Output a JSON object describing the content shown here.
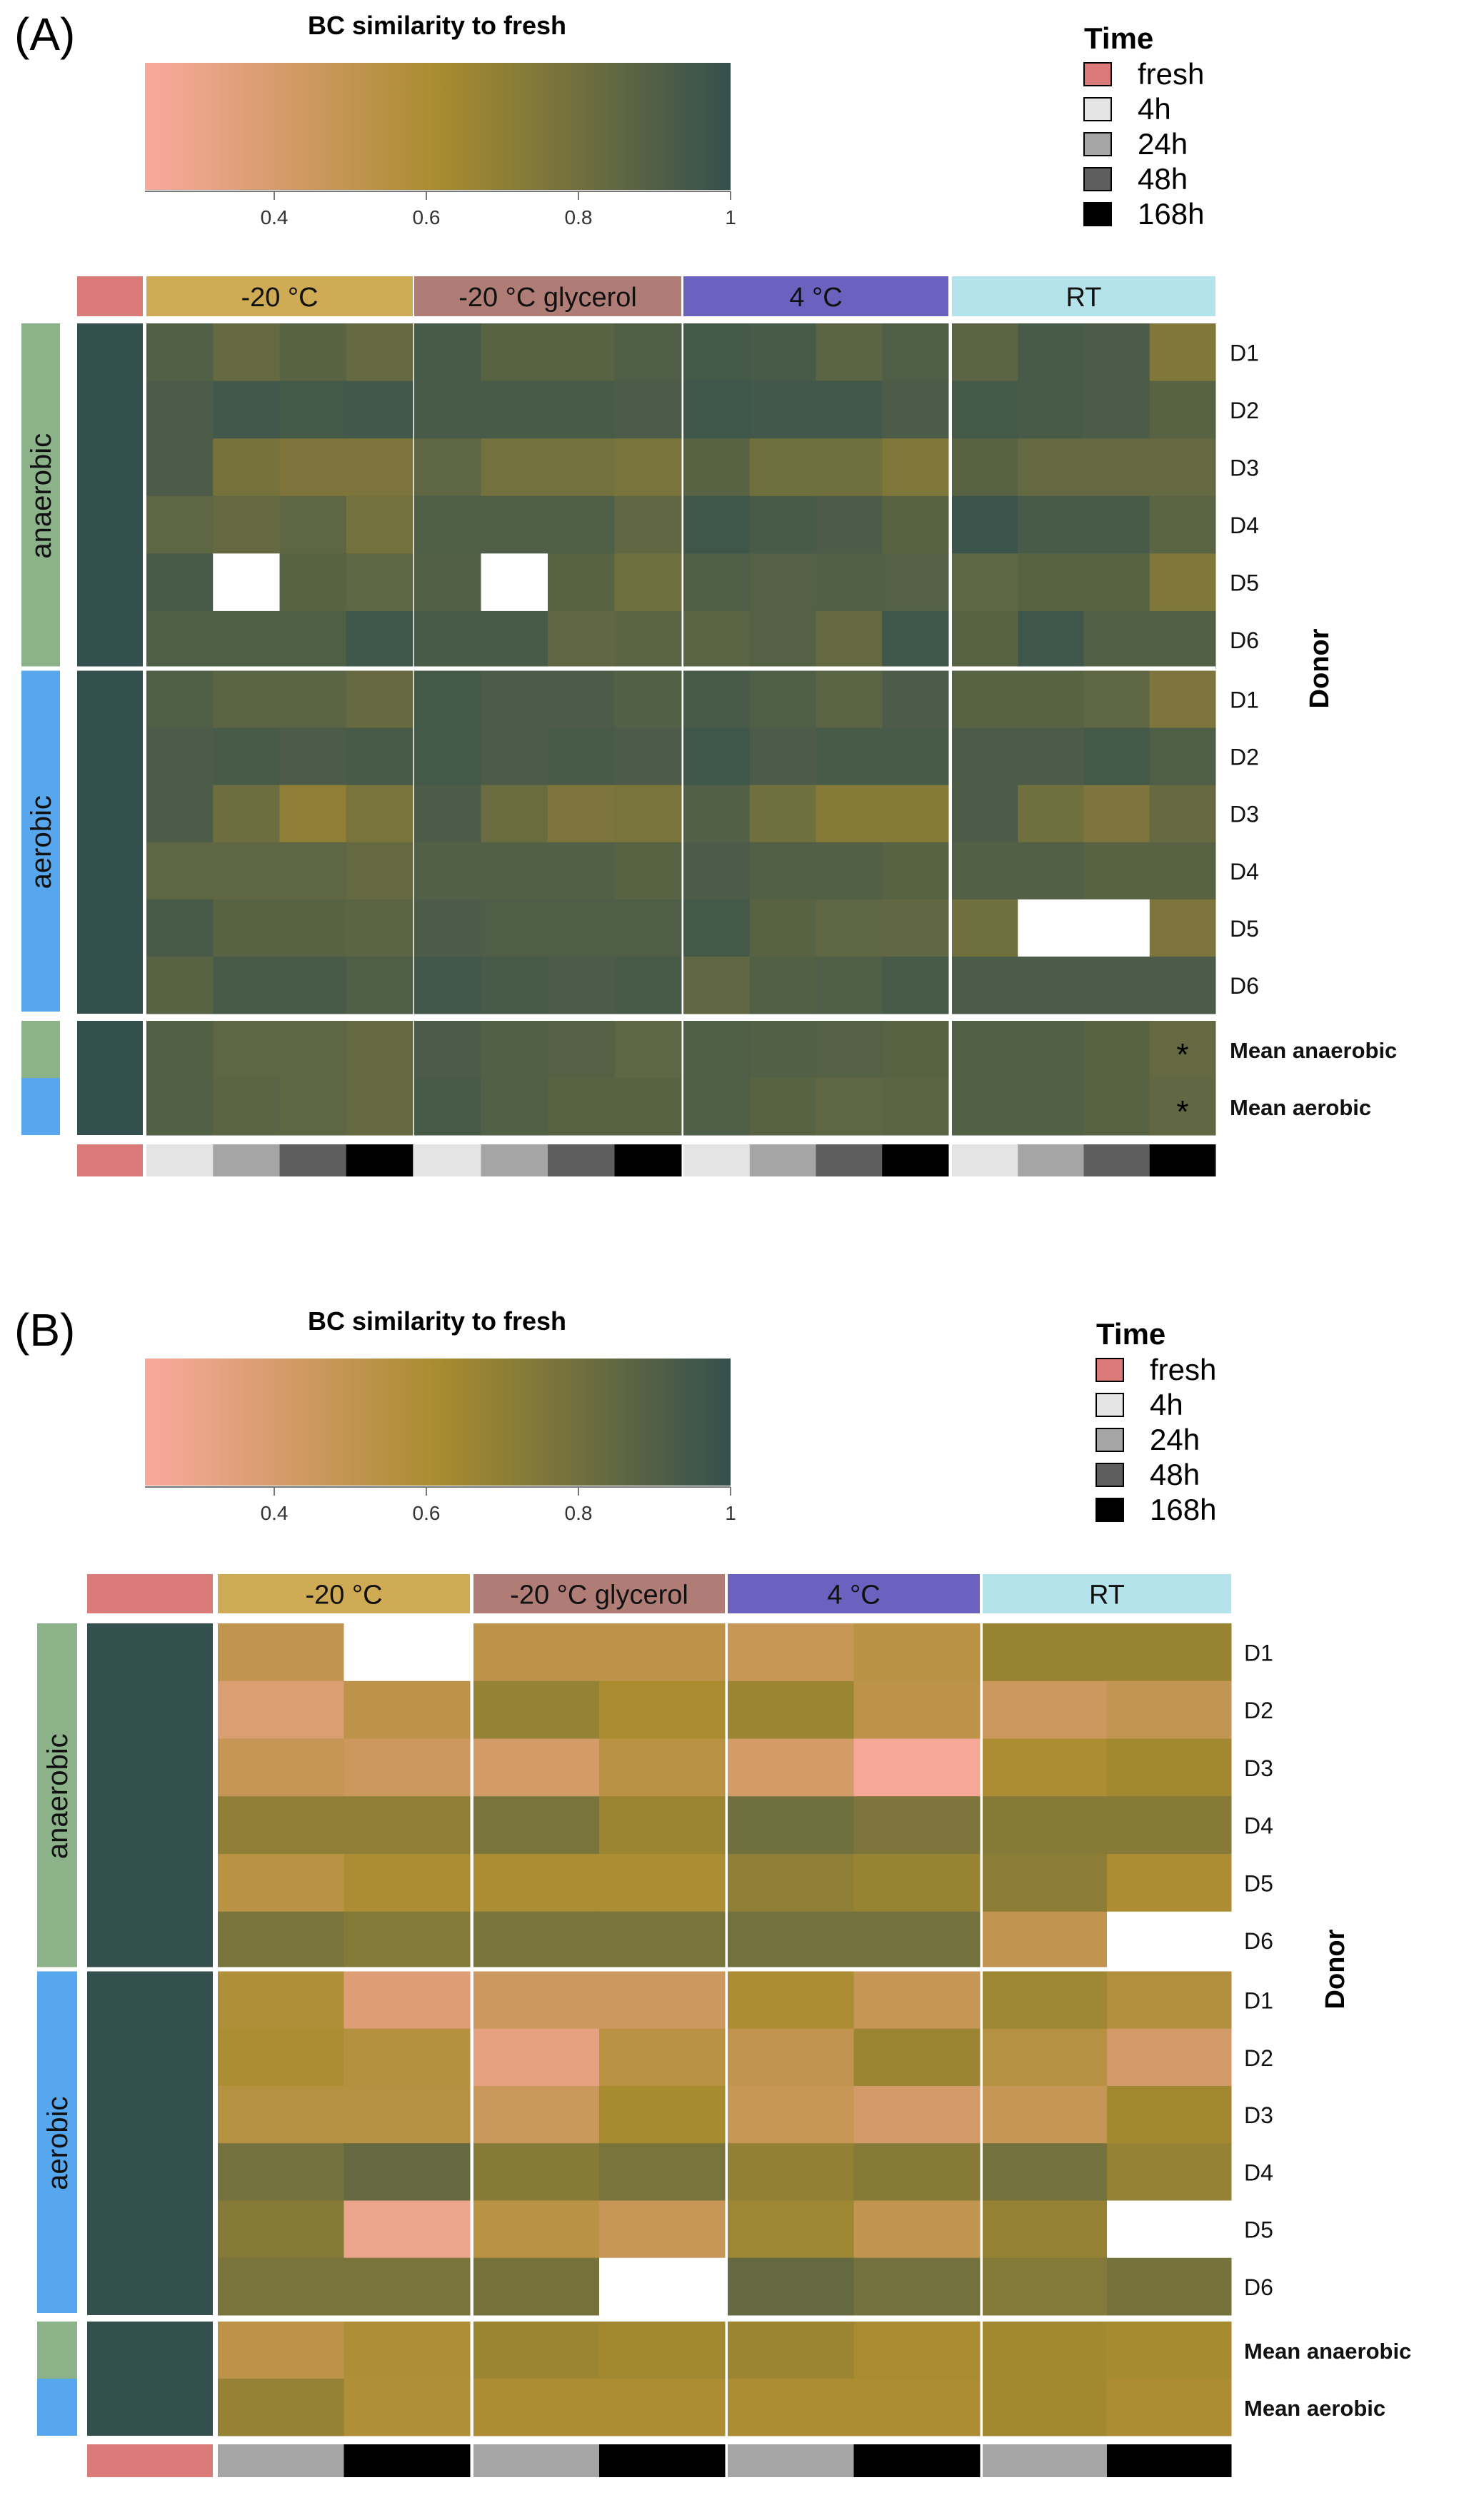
{
  "colors": {
    "scale_low": "#FAA99D",
    "scale_mid": "#A98C2F",
    "scale_high": "#33504E",
    "fresh": "#DB7B79",
    "t4h": "#E4E4E4",
    "t24h": "#A5A5A5",
    "t48h": "#5E5E5E",
    "t168h": "#000000",
    "cond_m20": "#CFAB55",
    "cond_glyc": "#B07C76",
    "cond_4c": "#6A62BE",
    "cond_rt": "#B4E3EC",
    "anaerobic": "#8BB289",
    "aerobic": "#57A7EE"
  },
  "chart_data": [
    {
      "panel_label": "(A)",
      "type": "heatmap",
      "title": "BC similarity to fresh",
      "colorbar": {
        "min": 0.23,
        "max": 1,
        "ticks": [
          "0.4",
          "0.6",
          "0.8",
          "1"
        ],
        "tick_values": [
          0.4,
          0.6,
          0.8,
          1.0
        ]
      },
      "legend": {
        "title": "Time",
        "entries": [
          "fresh",
          "4h",
          "24h",
          "48h",
          "168h"
        ]
      },
      "conditions": [
        "-20 °C",
        "-20 °C glycerol",
        "4 °C",
        "RT"
      ],
      "timepoints": [
        "4h",
        "24h",
        "48h",
        "168h"
      ],
      "groups": [
        "anaerobic",
        "aerobic"
      ],
      "rows": [
        "D1",
        "D2",
        "D3",
        "D4",
        "D5",
        "D6",
        "D1",
        "D2",
        "D3",
        "D4",
        "D5",
        "D6"
      ],
      "mean_rows": [
        "Mean anaerobic",
        "Mean aerobic"
      ],
      "row_axis_label": "Donor",
      "significance": [
        {
          "row": "Mean anaerobic",
          "condition": "RT",
          "time": "168h",
          "mark": "*"
        },
        {
          "row": "Mean aerobic",
          "condition": "RT",
          "time": "168h",
          "mark": "*"
        }
      ],
      "fresh_values": [
        1,
        1,
        1,
        1,
        1,
        1,
        1,
        1,
        1,
        1,
        1,
        1,
        1,
        1
      ],
      "values": [
        [
          0.9,
          0.84,
          0.88,
          0.84,
          0.93,
          0.88,
          0.88,
          0.91,
          0.94,
          0.93,
          0.87,
          0.91,
          0.87,
          0.93,
          0.92,
          0.75
        ],
        [
          0.92,
          0.95,
          0.94,
          0.95,
          0.93,
          0.93,
          0.93,
          0.92,
          0.96,
          0.95,
          0.95,
          0.92,
          0.94,
          0.93,
          0.92,
          0.88
        ],
        [
          0.92,
          0.78,
          0.76,
          0.76,
          0.86,
          0.79,
          0.79,
          0.77,
          0.88,
          0.8,
          0.8,
          0.75,
          0.88,
          0.84,
          0.84,
          0.84
        ],
        [
          0.86,
          0.84,
          0.86,
          0.79,
          0.91,
          0.91,
          0.91,
          0.85,
          0.96,
          0.93,
          0.92,
          0.88,
          0.97,
          0.93,
          0.93,
          0.87
        ],
        [
          0.93,
          null,
          0.88,
          0.86,
          0.9,
          null,
          0.88,
          0.8,
          0.91,
          0.89,
          0.9,
          0.89,
          0.86,
          0.88,
          0.88,
          0.75
        ],
        [
          0.91,
          0.91,
          0.91,
          0.96,
          0.93,
          0.93,
          0.85,
          0.87,
          0.87,
          0.89,
          0.84,
          0.96,
          0.88,
          0.96,
          0.9,
          0.9
        ],
        [
          0.91,
          0.87,
          0.87,
          0.83,
          0.94,
          0.92,
          0.92,
          0.9,
          0.93,
          0.91,
          0.87,
          0.92,
          0.88,
          0.88,
          0.86,
          0.76
        ],
        [
          0.92,
          0.93,
          0.92,
          0.93,
          0.94,
          0.92,
          0.93,
          0.92,
          0.96,
          0.92,
          0.93,
          0.93,
          0.92,
          0.92,
          0.94,
          0.91
        ],
        [
          0.92,
          0.81,
          0.7,
          0.77,
          0.92,
          0.82,
          0.76,
          0.77,
          0.9,
          0.8,
          0.73,
          0.73,
          0.92,
          0.8,
          0.76,
          0.83
        ],
        [
          0.86,
          0.86,
          0.86,
          0.84,
          0.9,
          0.9,
          0.9,
          0.88,
          0.92,
          0.9,
          0.9,
          0.88,
          0.9,
          0.9,
          0.88,
          0.88
        ],
        [
          0.93,
          0.88,
          0.88,
          0.87,
          0.92,
          0.91,
          0.91,
          0.91,
          0.94,
          0.88,
          0.86,
          0.85,
          0.8,
          null,
          null,
          0.76
        ],
        [
          0.88,
          0.93,
          0.93,
          0.91,
          0.95,
          0.93,
          0.92,
          0.93,
          0.85,
          0.9,
          0.91,
          0.93,
          0.92,
          0.92,
          0.92,
          0.92
        ]
      ],
      "mean_values": [
        [
          0.9,
          0.86,
          0.86,
          0.84,
          0.92,
          0.9,
          0.89,
          0.86,
          0.91,
          0.9,
          0.89,
          0.88,
          0.9,
          0.9,
          0.88,
          0.84
        ],
        [
          0.9,
          0.87,
          0.86,
          0.84,
          0.93,
          0.9,
          0.88,
          0.88,
          0.91,
          0.88,
          0.86,
          0.87,
          0.9,
          0.9,
          0.88,
          0.85
        ]
      ]
    },
    {
      "panel_label": "(B)",
      "type": "heatmap",
      "title": "BC similarity to fresh",
      "colorbar": {
        "min": 0.23,
        "max": 1,
        "ticks": [
          "0.4",
          "0.6",
          "0.8",
          "1"
        ],
        "tick_values": [
          0.4,
          0.6,
          0.8,
          1.0
        ]
      },
      "legend": {
        "title": "Time",
        "entries": [
          "fresh",
          "4h",
          "24h",
          "48h",
          "168h"
        ]
      },
      "conditions": [
        "-20 °C",
        "-20 °C glycerol",
        "4 °C",
        "RT"
      ],
      "timepoints": [
        "24h",
        "168h"
      ],
      "groups": [
        "anaerobic",
        "aerobic"
      ],
      "rows": [
        "D1",
        "D2",
        "D3",
        "D4",
        "D5",
        "D6",
        "D1",
        "D2",
        "D3",
        "D4",
        "D5",
        "D6"
      ],
      "mean_rows": [
        "Mean anaerobic",
        "Mean aerobic"
      ],
      "row_axis_label": "Donor",
      "significance": [],
      "fresh_values": [
        1,
        1,
        1,
        1,
        1,
        1,
        1,
        1,
        1,
        1,
        1,
        1,
        1,
        1
      ],
      "values": [
        [
          0.5,
          null,
          0.52,
          0.52,
          0.47,
          0.54,
          0.67,
          0.67
        ],
        [
          0.38,
          0.52,
          0.68,
          0.61,
          0.66,
          0.52,
          0.45,
          0.49
        ],
        [
          0.48,
          0.45,
          0.42,
          0.54,
          0.42,
          0.25,
          0.6,
          0.64
        ],
        [
          0.7,
          0.7,
          0.77,
          0.66,
          0.8,
          0.76,
          0.73,
          0.73
        ],
        [
          0.54,
          0.6,
          0.6,
          0.6,
          0.7,
          0.67,
          0.71,
          0.6
        ],
        [
          0.77,
          0.74,
          0.77,
          0.77,
          0.79,
          0.79,
          0.5,
          null
        ],
        [
          0.58,
          0.37,
          0.45,
          0.45,
          0.6,
          0.48,
          0.65,
          0.57
        ],
        [
          0.6,
          0.56,
          0.33,
          0.54,
          0.5,
          0.66,
          0.55,
          0.41
        ],
        [
          0.55,
          0.55,
          0.46,
          0.62,
          0.47,
          0.41,
          0.48,
          0.64
        ],
        [
          0.79,
          0.84,
          0.73,
          0.77,
          0.69,
          0.73,
          0.79,
          0.68
        ],
        [
          0.73,
          0.29,
          0.54,
          0.47,
          0.65,
          0.5,
          0.68,
          null
        ],
        [
          0.77,
          0.77,
          0.78,
          null,
          0.84,
          0.79,
          0.74,
          0.78
        ]
      ],
      "mean_values": [
        [
          0.52,
          0.59,
          0.66,
          0.64,
          0.66,
          0.61,
          0.64,
          0.62
        ],
        [
          0.68,
          0.58,
          0.6,
          0.6,
          0.6,
          0.6,
          0.64,
          0.6
        ]
      ]
    }
  ]
}
